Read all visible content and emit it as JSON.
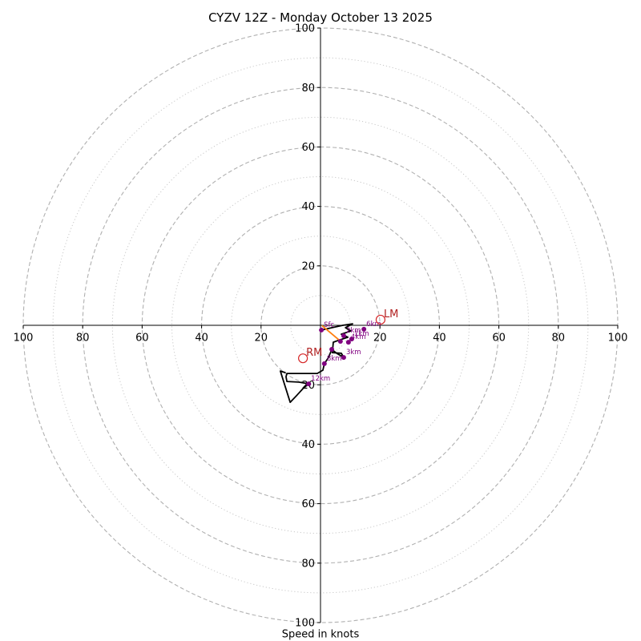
{
  "chart_data": {
    "type": "line",
    "title": "CYZV 12Z - Monday October 13 2025",
    "xlabel": "Speed in knots",
    "xlim": [
      -100,
      100
    ],
    "ylim": [
      -100,
      100
    ],
    "rings_major": [
      20,
      40,
      60,
      80,
      100
    ],
    "rings_minor": [
      10,
      30,
      50,
      70,
      90
    ],
    "x_ticks": [
      {
        "value": -100,
        "label": "100"
      },
      {
        "value": -80,
        "label": "80"
      },
      {
        "value": -60,
        "label": "60"
      },
      {
        "value": -40,
        "label": "40"
      },
      {
        "value": -20,
        "label": "20"
      },
      {
        "value": 20,
        "label": "20"
      },
      {
        "value": 40,
        "label": "40"
      },
      {
        "value": 60,
        "label": "60"
      },
      {
        "value": 80,
        "label": "80"
      },
      {
        "value": 100,
        "label": "100"
      }
    ],
    "y_ticks": [
      {
        "value": 100,
        "label": "100"
      },
      {
        "value": 80,
        "label": "80"
      },
      {
        "value": 60,
        "label": "60"
      },
      {
        "value": 40,
        "label": "40"
      },
      {
        "value": 20,
        "label": "20"
      },
      {
        "value": -20,
        "label": "20"
      },
      {
        "value": -40,
        "label": "40"
      },
      {
        "value": -60,
        "label": "60"
      },
      {
        "value": -80,
        "label": "80"
      },
      {
        "value": -100,
        "label": "100"
      }
    ],
    "series": [
      {
        "u": [
          0.3,
          3.8,
          7.5,
          10.8,
          8.4,
          10.2,
          7.0,
          9.2,
          5.9,
          4.3,
          4.0,
          7.0,
          7.8,
          5.4,
          3.8,
          2.7,
          1.3,
          0.8,
          -1.1,
          -7.5,
          -11.3,
          -11.6,
          -11.3,
          -7.3,
          -4.0,
          -5.9,
          -8.1,
          -10.2,
          -11.9,
          -13.5,
          -11.9
        ],
        "v": [
          -1.6,
          -0.8,
          0.0,
          0.5,
          -0.8,
          -1.9,
          -3.0,
          -4.0,
          -5.1,
          -5.7,
          -9.2,
          -9.4,
          -10.8,
          -9.4,
          -8.1,
          -10.8,
          -12.9,
          -15.1,
          -16.2,
          -16.2,
          -16.2,
          -17.3,
          -18.9,
          -19.1,
          -19.7,
          -21.3,
          -23.7,
          -25.9,
          -20.5,
          -15.4,
          -15.9
        ]
      }
    ],
    "height_points": [
      {
        "label": "Sfc",
        "u": 0.3,
        "v": -1.6
      },
      {
        "label": "1km",
        "u": 10.5,
        "v": -4.6
      },
      {
        "label": "2km",
        "u": 7.8,
        "v": -3.5
      },
      {
        "label": "3km",
        "u": 7.8,
        "v": -10.8
      },
      {
        "label": "4km",
        "u": 9.4,
        "v": -5.7
      },
      {
        "u": 6.7,
        "v": -5.4
      },
      {
        "label": "6km",
        "u": 14.6,
        "v": -1.3
      },
      {
        "u": 3.8,
        "v": -8.1
      },
      {
        "label": "8km",
        "u": 1.3,
        "v": -12.9
      },
      {
        "label": "12km",
        "u": -4.0,
        "v": -19.7
      }
    ],
    "storm_motion": [
      {
        "label": "LM",
        "u": 20.2,
        "v": 1.9
      },
      {
        "label": "RM",
        "u": -5.9,
        "v": -11.1
      }
    ],
    "orange_line": {
      "u": [
        0.6,
        6.2
      ],
      "v": [
        -0.2,
        -4.9
      ]
    }
  },
  "colors": {
    "trace": "#000000",
    "height_points": "#800080",
    "storm_motion_marker": "#d62728",
    "storm_motion_label": "#b22222",
    "orange_line": "#ff7f0e",
    "ring_major": "#b0b0b0",
    "ring_minor": "#c8c8c8",
    "axis": "#000000"
  }
}
